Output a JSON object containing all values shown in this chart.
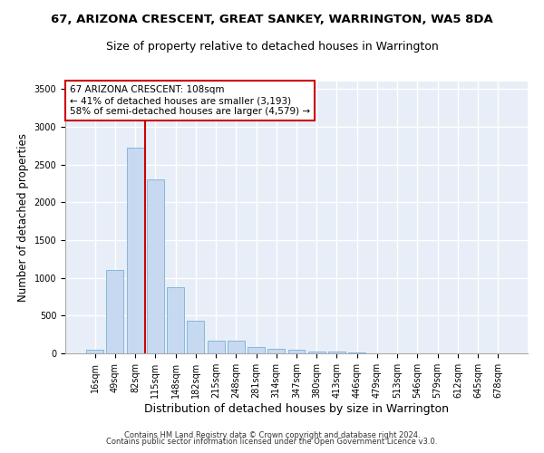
{
  "title": "67, ARIZONA CRESCENT, GREAT SANKEY, WARRINGTON, WA5 8DA",
  "subtitle": "Size of property relative to detached houses in Warrington",
  "xlabel": "Distribution of detached houses by size in Warrington",
  "ylabel": "Number of detached properties",
  "categories": [
    "16sqm",
    "49sqm",
    "82sqm",
    "115sqm",
    "148sqm",
    "182sqm",
    "215sqm",
    "248sqm",
    "281sqm",
    "314sqm",
    "347sqm",
    "380sqm",
    "413sqm",
    "446sqm",
    "479sqm",
    "513sqm",
    "546sqm",
    "579sqm",
    "612sqm",
    "645sqm",
    "678sqm"
  ],
  "values": [
    50,
    1100,
    2730,
    2300,
    880,
    430,
    170,
    170,
    90,
    60,
    50,
    30,
    25,
    15,
    5,
    5,
    3,
    2,
    1,
    1,
    1
  ],
  "bar_color": "#c6d9f1",
  "bar_edge_color": "#7bafd4",
  "bg_color": "#e8eef7",
  "grid_color": "#ffffff",
  "red_line_index": 2,
  "annotation_text": "67 ARIZONA CRESCENT: 108sqm\n← 41% of detached houses are smaller (3,193)\n58% of semi-detached houses are larger (4,579) →",
  "annotation_box_facecolor": "#ffffff",
  "annotation_box_edgecolor": "#cc0000",
  "ylim": [
    0,
    3600
  ],
  "yticks": [
    0,
    500,
    1000,
    1500,
    2000,
    2500,
    3000,
    3500
  ],
  "footer1": "Contains HM Land Registry data © Crown copyright and database right 2024.",
  "footer2": "Contains public sector information licensed under the Open Government Licence v3.0.",
  "title_fontsize": 9.5,
  "subtitle_fontsize": 9,
  "xlabel_fontsize": 9,
  "ylabel_fontsize": 8.5,
  "tick_fontsize": 7,
  "annot_fontsize": 7.5,
  "footer_fontsize": 6
}
